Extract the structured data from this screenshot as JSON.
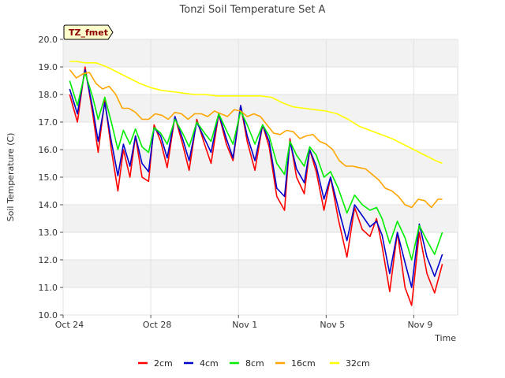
{
  "chart_data": {
    "type": "line",
    "title": "Tonzi Soil Temperature Set A",
    "xlabel": "Time",
    "ylabel": "Soil Temperature (C)",
    "site_tag": "TZ_fmet",
    "ylim": [
      10.0,
      20.0
    ],
    "xlim": [
      0,
      18
    ],
    "y_ticks": [
      10,
      11,
      12,
      13,
      14,
      15,
      16,
      17,
      18,
      19,
      20
    ],
    "y_tick_labels": [
      "10.0",
      "11.0",
      "12.0",
      "13.0",
      "14.0",
      "15.0",
      "16.0",
      "17.0",
      "18.0",
      "19.0",
      "20.0"
    ],
    "x_ticks": [
      0,
      4,
      8,
      12,
      16
    ],
    "x_tick_labels": [
      "Oct 24",
      "Oct 28",
      "Nov 1",
      "Nov 5",
      "Nov 9"
    ],
    "x_unit": "days since Oct 24",
    "series": [
      {
        "name": "2cm",
        "color": "#ff0000",
        "x": [
          0.3,
          0.65,
          1.0,
          1.35,
          1.6,
          1.9,
          2.2,
          2.5,
          2.75,
          3.05,
          3.3,
          3.6,
          3.9,
          4.15,
          4.45,
          4.75,
          5.1,
          5.45,
          5.75,
          6.1,
          6.45,
          6.75,
          7.1,
          7.45,
          7.75,
          8.1,
          8.4,
          8.75,
          9.1,
          9.4,
          9.75,
          10.1,
          10.35,
          10.65,
          11.0,
          11.25,
          11.55,
          11.9,
          12.2,
          12.55,
          12.95,
          13.3,
          13.65,
          14.0,
          14.3,
          14.55,
          14.9,
          15.25,
          15.6,
          15.9,
          16.25,
          16.6,
          16.95,
          17.3
        ],
        "y": [
          18.0,
          17.0,
          19.0,
          17.3,
          15.9,
          17.8,
          16.0,
          14.5,
          16.0,
          15.0,
          16.5,
          15.0,
          14.85,
          16.9,
          16.3,
          15.35,
          17.2,
          16.2,
          15.25,
          17.1,
          16.2,
          15.5,
          17.3,
          16.2,
          15.6,
          17.6,
          16.3,
          15.25,
          16.9,
          16.1,
          14.3,
          13.8,
          16.4,
          15.0,
          14.4,
          16.0,
          15.2,
          13.8,
          15.0,
          13.5,
          12.1,
          13.9,
          13.1,
          12.85,
          13.5,
          12.5,
          10.85,
          13.0,
          11.0,
          10.35,
          13.0,
          11.5,
          10.8,
          11.85
        ]
      },
      {
        "name": "4cm",
        "color": "#0000cc",
        "x": [
          0.3,
          0.65,
          1.0,
          1.35,
          1.6,
          1.9,
          2.2,
          2.5,
          2.75,
          3.05,
          3.3,
          3.6,
          3.9,
          4.15,
          4.45,
          4.75,
          5.1,
          5.45,
          5.75,
          6.1,
          6.45,
          6.75,
          7.1,
          7.45,
          7.75,
          8.1,
          8.4,
          8.75,
          9.1,
          9.4,
          9.75,
          10.1,
          10.35,
          10.65,
          11.0,
          11.25,
          11.55,
          11.9,
          12.2,
          12.55,
          12.95,
          13.3,
          13.65,
          14.0,
          14.3,
          14.55,
          14.9,
          15.25,
          15.6,
          15.9,
          16.25,
          16.6,
          16.95,
          17.3
        ],
        "y": [
          18.2,
          17.3,
          18.9,
          17.5,
          16.3,
          17.7,
          16.3,
          15.05,
          16.2,
          15.4,
          16.5,
          15.5,
          15.2,
          16.8,
          16.5,
          15.7,
          17.2,
          16.4,
          15.6,
          17.0,
          16.4,
          15.9,
          17.3,
          16.4,
          15.7,
          17.6,
          16.5,
          15.6,
          16.9,
          16.3,
          14.6,
          14.3,
          16.3,
          15.3,
          14.8,
          16.0,
          15.4,
          14.2,
          15.0,
          13.9,
          12.7,
          14.0,
          13.6,
          13.2,
          13.4,
          12.9,
          11.5,
          13.0,
          11.9,
          11.0,
          13.3,
          12.1,
          11.4,
          12.2
        ]
      },
      {
        "name": "8cm",
        "color": "#00ee00",
        "x": [
          0.3,
          0.65,
          1.0,
          1.35,
          1.6,
          1.9,
          2.2,
          2.5,
          2.75,
          3.05,
          3.3,
          3.6,
          3.9,
          4.15,
          4.45,
          4.75,
          5.1,
          5.45,
          5.75,
          6.1,
          6.45,
          6.75,
          7.1,
          7.45,
          7.75,
          8.1,
          8.4,
          8.75,
          9.1,
          9.4,
          9.75,
          10.1,
          10.35,
          10.65,
          11.0,
          11.25,
          11.55,
          11.9,
          12.2,
          12.55,
          12.95,
          13.3,
          13.65,
          14.0,
          14.3,
          14.55,
          14.9,
          15.25,
          15.6,
          15.9,
          16.25,
          16.6,
          16.95,
          17.3
        ],
        "y": [
          18.5,
          17.6,
          18.8,
          17.9,
          17.1,
          17.9,
          17.0,
          16.0,
          16.7,
          16.2,
          16.75,
          16.1,
          15.9,
          16.8,
          16.6,
          16.2,
          17.1,
          16.6,
          16.1,
          17.0,
          16.6,
          16.3,
          17.3,
          16.7,
          16.2,
          17.4,
          16.9,
          16.2,
          16.9,
          16.5,
          15.5,
          15.1,
          16.3,
          15.8,
          15.4,
          16.1,
          15.8,
          15.0,
          15.2,
          14.6,
          13.7,
          14.35,
          14.0,
          13.8,
          13.9,
          13.5,
          12.6,
          13.4,
          12.8,
          12.0,
          13.25,
          12.7,
          12.2,
          13.0
        ]
      },
      {
        "name": "16cm",
        "color": "#ffa500",
        "x": [
          0.3,
          0.6,
          0.9,
          1.2,
          1.5,
          1.8,
          2.1,
          2.4,
          2.7,
          3.0,
          3.3,
          3.6,
          3.9,
          4.2,
          4.5,
          4.8,
          5.1,
          5.4,
          5.7,
          6.0,
          6.3,
          6.6,
          6.9,
          7.2,
          7.5,
          7.8,
          8.1,
          8.4,
          8.7,
          9.0,
          9.3,
          9.6,
          9.9,
          10.2,
          10.5,
          10.8,
          11.1,
          11.4,
          11.7,
          12.0,
          12.3,
          12.6,
          12.9,
          13.2,
          13.5,
          13.8,
          14.1,
          14.4,
          14.7,
          15.0,
          15.3,
          15.6,
          15.9,
          16.2,
          16.5,
          16.8,
          17.1,
          17.3
        ],
        "y": [
          18.9,
          18.6,
          18.75,
          18.8,
          18.4,
          18.2,
          18.3,
          18.0,
          17.5,
          17.5,
          17.35,
          17.1,
          17.1,
          17.3,
          17.25,
          17.1,
          17.35,
          17.3,
          17.1,
          17.3,
          17.3,
          17.2,
          17.4,
          17.3,
          17.2,
          17.45,
          17.4,
          17.2,
          17.3,
          17.2,
          16.9,
          16.6,
          16.55,
          16.7,
          16.65,
          16.4,
          16.5,
          16.55,
          16.3,
          16.2,
          16.0,
          15.6,
          15.4,
          15.4,
          15.35,
          15.3,
          15.1,
          14.9,
          14.6,
          14.5,
          14.3,
          14.0,
          13.9,
          14.2,
          14.15,
          13.9,
          14.2,
          14.2
        ]
      },
      {
        "name": "32cm",
        "color": "#ffff00",
        "x": [
          0.3,
          0.6,
          1.0,
          1.5,
          2.0,
          2.5,
          3.0,
          3.5,
          4.0,
          4.5,
          5.0,
          5.5,
          6.0,
          6.5,
          7.0,
          7.5,
          8.0,
          8.5,
          9.0,
          9.5,
          10.0,
          10.5,
          11.0,
          11.5,
          12.0,
          12.5,
          13.0,
          13.5,
          14.0,
          14.5,
          15.0,
          15.5,
          16.0,
          16.5,
          17.0,
          17.3
        ],
        "y": [
          19.2,
          19.2,
          19.15,
          19.15,
          19.0,
          18.8,
          18.6,
          18.4,
          18.25,
          18.15,
          18.1,
          18.05,
          18.0,
          18.0,
          17.95,
          17.95,
          17.95,
          17.95,
          17.95,
          17.9,
          17.7,
          17.55,
          17.5,
          17.45,
          17.4,
          17.3,
          17.1,
          16.85,
          16.7,
          16.55,
          16.4,
          16.2,
          16.0,
          15.8,
          15.6,
          15.5
        ]
      }
    ]
  }
}
